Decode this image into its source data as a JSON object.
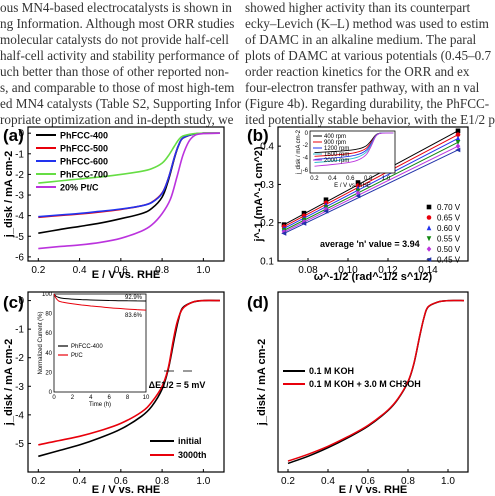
{
  "text_lines": {
    "left": [
      "ous MN4-based electrocatalysts is shown in",
      "ng Information. Although most ORR studies",
      "molecular catalysts do not provide half-cell",
      "half-cell activity and stability performance of",
      "uch better than those of other reported non-",
      "s, and comparable to those of most high-tem",
      "ed MN4 catalysts (Table S2, Supporting Infor",
      "ropriate optimization and in-depth study, we"
    ],
    "right": [
      "showed higher activity than its counterpart",
      "ecky–Levich (K–L) method was used to estim",
      "of DAMC in an alkaline medium. The paral",
      "plots of DAMC at various potentials (0.45–0.7",
      "order reaction kinetics for the ORR and ex",
      "four-electron transfer pathway, with an n val",
      "(Figure 4b). Regarding durability, the PhFCC-",
      "ited potentially stable behavior, with the E1/2 p"
    ]
  },
  "chart_data": [
    {
      "panel": "(a)",
      "type": "line",
      "xlabel": "E / V vs. RHE",
      "ylabel": "j_disk / mA cm-2",
      "xlim": [
        0.15,
        1.1
      ],
      "ylim": [
        -6.2,
        0.3
      ],
      "xticks": [
        "0.2",
        "0.4",
        "0.6",
        "0.8",
        "1.0"
      ],
      "yticks": [
        "0",
        "-1",
        "-2",
        "-3",
        "-4",
        "-5",
        "-6"
      ],
      "legend": "top-left",
      "series": [
        {
          "name": "PhFCC-400",
          "color": "#000000",
          "x": [
            0.2,
            0.3,
            0.4,
            0.5,
            0.6,
            0.7,
            0.75,
            0.8,
            0.83,
            0.86,
            0.88,
            0.9,
            0.95,
            1.0,
            1.08
          ],
          "y": [
            -4.85,
            -4.68,
            -4.52,
            -4.36,
            -4.15,
            -3.9,
            -3.65,
            -3.1,
            -2.3,
            -1.2,
            -0.6,
            -0.25,
            -0.05,
            0,
            0
          ]
        },
        {
          "name": "PhFCC-500",
          "color": "#e8000b",
          "x": [
            0.2,
            0.3,
            0.4,
            0.5,
            0.6,
            0.7,
            0.75,
            0.8,
            0.83,
            0.86,
            0.88,
            0.9,
            0.95,
            1.0,
            1.08
          ],
          "y": [
            -4.08,
            -4.0,
            -3.92,
            -3.82,
            -3.7,
            -3.52,
            -3.35,
            -2.9,
            -2.2,
            -1.15,
            -0.58,
            -0.24,
            -0.05,
            0,
            0
          ]
        },
        {
          "name": "PhFCC-600",
          "color": "#2233ee",
          "x": [
            0.2,
            0.3,
            0.4,
            0.5,
            0.6,
            0.7,
            0.75,
            0.8,
            0.83,
            0.86,
            0.88,
            0.9,
            0.95,
            1.0,
            1.08
          ],
          "y": [
            -4.05,
            -3.97,
            -3.89,
            -3.79,
            -3.68,
            -3.52,
            -3.36,
            -2.92,
            -2.2,
            -1.15,
            -0.58,
            -0.24,
            -0.05,
            0,
            0
          ]
        },
        {
          "name": "PhFCC-700",
          "color": "#66dd44",
          "x": [
            0.2,
            0.3,
            0.4,
            0.5,
            0.6,
            0.7,
            0.75,
            0.8,
            0.83,
            0.86,
            0.88,
            0.9,
            0.95,
            1.0,
            1.08
          ],
          "y": [
            -2.42,
            -2.32,
            -2.22,
            -2.12,
            -2.0,
            -1.85,
            -1.72,
            -1.45,
            -1.1,
            -0.62,
            -0.32,
            -0.14,
            -0.03,
            0,
            0
          ]
        },
        {
          "name": "20% Pt/C",
          "color": "#bb33dd",
          "x": [
            0.2,
            0.3,
            0.4,
            0.5,
            0.6,
            0.7,
            0.75,
            0.8,
            0.84,
            0.87,
            0.9,
            0.93,
            0.96,
            1.0,
            1.08
          ],
          "y": [
            -5.6,
            -5.5,
            -5.42,
            -5.3,
            -5.1,
            -4.75,
            -4.45,
            -3.9,
            -3.2,
            -2.2,
            -1.1,
            -0.4,
            -0.1,
            -0.02,
            0
          ]
        }
      ]
    },
    {
      "panel": "(b)",
      "type": "scatter",
      "xlabel": "ω^-1/2 (rad^-1/2 s^1/2)",
      "ylabel": "j^-1 (mA^-1 cm^2)",
      "xlim": [
        0.065,
        0.16
      ],
      "ylim": [
        0.1,
        0.45
      ],
      "xticks": [
        "0.08",
        "0.10",
        "0.12",
        "0.14"
      ],
      "yticks": [
        "0.1",
        "0.2",
        "0.3",
        "0.4"
      ],
      "x": [
        0.068,
        0.078,
        0.089,
        0.105,
        0.155
      ],
      "annotation": "average 'n' value = 3.94",
      "legend": "right",
      "series": [
        {
          "name": "0.70 V",
          "color": "#000000",
          "marker": "square",
          "y": [
            0.195,
            0.225,
            0.26,
            0.305,
            0.44
          ]
        },
        {
          "name": "0.65 V",
          "color": "#e8000b",
          "marker": "circle",
          "y": [
            0.19,
            0.218,
            0.252,
            0.297,
            0.43
          ]
        },
        {
          "name": "0.60 V",
          "color": "#2233ee",
          "marker": "triangle-up",
          "y": [
            0.185,
            0.212,
            0.246,
            0.29,
            0.42
          ]
        },
        {
          "name": "0.55 V",
          "color": "#118811",
          "marker": "triangle-down",
          "y": [
            0.18,
            0.207,
            0.24,
            0.283,
            0.41
          ]
        },
        {
          "name": "0.50 V",
          "color": "#bb33dd",
          "marker": "diamond",
          "y": [
            0.176,
            0.202,
            0.235,
            0.277,
            0.4
          ]
        },
        {
          "name": "0.45 V",
          "color": "#2233aa",
          "marker": "triangle-left",
          "y": [
            0.172,
            0.198,
            0.23,
            0.27,
            0.39
          ]
        }
      ],
      "inset": {
        "type": "line",
        "xlabel": "E / V vs. RHE",
        "ylabel": "j_disk / mA cm-2",
        "xticks": [
          "0.2",
          "0.4",
          "0.6",
          "0.8",
          "1.0"
        ],
        "yticks": [
          "0",
          "-2",
          "-4",
          "-6"
        ],
        "xlim": [
          0.15,
          1.1
        ],
        "ylim": [
          -6.5,
          0.3
        ],
        "series": [
          {
            "name": "400 rpm",
            "color": "#000000",
            "limit": -3.2
          },
          {
            "name": "900 rpm",
            "color": "#e8000b",
            "limit": -3.8
          },
          {
            "name": "1200 rpm",
            "color": "#2233ee",
            "limit": -4.3
          },
          {
            "name": "1600 rpm",
            "color": "#33bbcc",
            "limit": -4.8
          },
          {
            "name": "2000 rpm",
            "color": "#bb33dd",
            "limit": -5.4
          }
        ]
      }
    },
    {
      "panel": "(c)",
      "type": "line",
      "xlabel": "E / V vs. RHE",
      "ylabel": "j_disk / mA cm-2",
      "xlim": [
        0.15,
        1.1
      ],
      "ylim": [
        -6.0,
        0.3
      ],
      "xticks": [
        "0.2",
        "0.4",
        "0.6",
        "0.8",
        "1.0"
      ],
      "yticks": [
        "0",
        "-1",
        "-2",
        "-3",
        "-4",
        "-5"
      ],
      "annotation": "ΔE1/2 = 5 mV",
      "legend": "bottom-right",
      "series": [
        {
          "name": "initial",
          "color": "#000000",
          "x": [
            0.2,
            0.3,
            0.4,
            0.5,
            0.6,
            0.7,
            0.75,
            0.8,
            0.83,
            0.86,
            0.88,
            0.9,
            0.95,
            1.0,
            1.08
          ],
          "y": [
            -5.45,
            -5.25,
            -5.05,
            -4.8,
            -4.5,
            -4.05,
            -3.7,
            -3.1,
            -2.4,
            -1.3,
            -0.65,
            -0.25,
            -0.05,
            0,
            0
          ]
        },
        {
          "name": "3000th",
          "color": "#e8000b",
          "x": [
            0.2,
            0.3,
            0.4,
            0.5,
            0.6,
            0.7,
            0.75,
            0.8,
            0.83,
            0.855,
            0.875,
            0.9,
            0.95,
            1.0,
            1.08
          ],
          "y": [
            -5.05,
            -4.9,
            -4.75,
            -4.55,
            -4.3,
            -3.9,
            -3.55,
            -3.0,
            -2.35,
            -1.35,
            -0.7,
            -0.28,
            -0.05,
            0,
            0
          ]
        }
      ],
      "inset": {
        "type": "line",
        "xlabel": "Time (h)",
        "ylabel": "Normalized Current (%)",
        "xticks": [
          "0",
          "2",
          "4",
          "6",
          "8",
          "10"
        ],
        "yticks": [
          "0",
          "20",
          "40",
          "60",
          "80",
          "100"
        ],
        "xlim": [
          0,
          10
        ],
        "ylim": [
          0,
          100
        ],
        "series": [
          {
            "name": "PhFCC-400",
            "color": "#000000",
            "label": "92.9%",
            "x": [
              0,
              0.2,
              0.5,
              1,
              2,
              3,
              4,
              5,
              6,
              7,
              8,
              9,
              10
            ],
            "y": [
              100,
              98,
              96.5,
              95.5,
              94.8,
              94.3,
              93.9,
              93.6,
              93.4,
              93.2,
              93.1,
              93,
              92.9
            ]
          },
          {
            "name": "Pt/C",
            "color": "#e8000b",
            "label": "83.6%",
            "x": [
              0,
              0.2,
              0.5,
              1,
              2,
              3,
              4,
              5,
              6,
              7,
              8,
              9,
              10
            ],
            "y": [
              100,
              96,
              93,
              91.5,
              90,
              88.8,
              87.8,
              86.9,
              86,
              85.3,
              84.6,
              84.1,
              83.6
            ]
          }
        ]
      }
    },
    {
      "panel": "(d)",
      "type": "line",
      "xlabel": "E / V vs. RHE",
      "ylabel": "j_disk / mA cm-2",
      "xlim": [
        0.15,
        1.1
      ],
      "ylim": [
        -6.0,
        0.3
      ],
      "xticks": [
        "0.2",
        "0.4",
        "0.6",
        "0.8",
        "1.0"
      ],
      "yticks": [],
      "legend": "left",
      "series": [
        {
          "name": "0.1 M KOH",
          "color": "#000000",
          "x": [
            0.2,
            0.3,
            0.4,
            0.5,
            0.6,
            0.7,
            0.75,
            0.8,
            0.83,
            0.86,
            0.88,
            0.9,
            0.95,
            1.0,
            1.08
          ],
          "y": [
            -5.7,
            -5.45,
            -5.15,
            -4.8,
            -4.4,
            -3.85,
            -3.45,
            -2.85,
            -2.2,
            -1.2,
            -0.6,
            -0.23,
            -0.05,
            0,
            0
          ]
        },
        {
          "name": "0.1 M KOH + 3.0 M CH3OH",
          "color": "#e8000b",
          "x": [
            0.2,
            0.3,
            0.4,
            0.5,
            0.6,
            0.7,
            0.75,
            0.8,
            0.83,
            0.86,
            0.88,
            0.9,
            0.95,
            1.0,
            1.08
          ],
          "y": [
            -5.62,
            -5.38,
            -5.1,
            -4.76,
            -4.37,
            -3.83,
            -3.43,
            -2.83,
            -2.18,
            -1.18,
            -0.59,
            -0.22,
            -0.05,
            0,
            0
          ]
        }
      ]
    }
  ]
}
